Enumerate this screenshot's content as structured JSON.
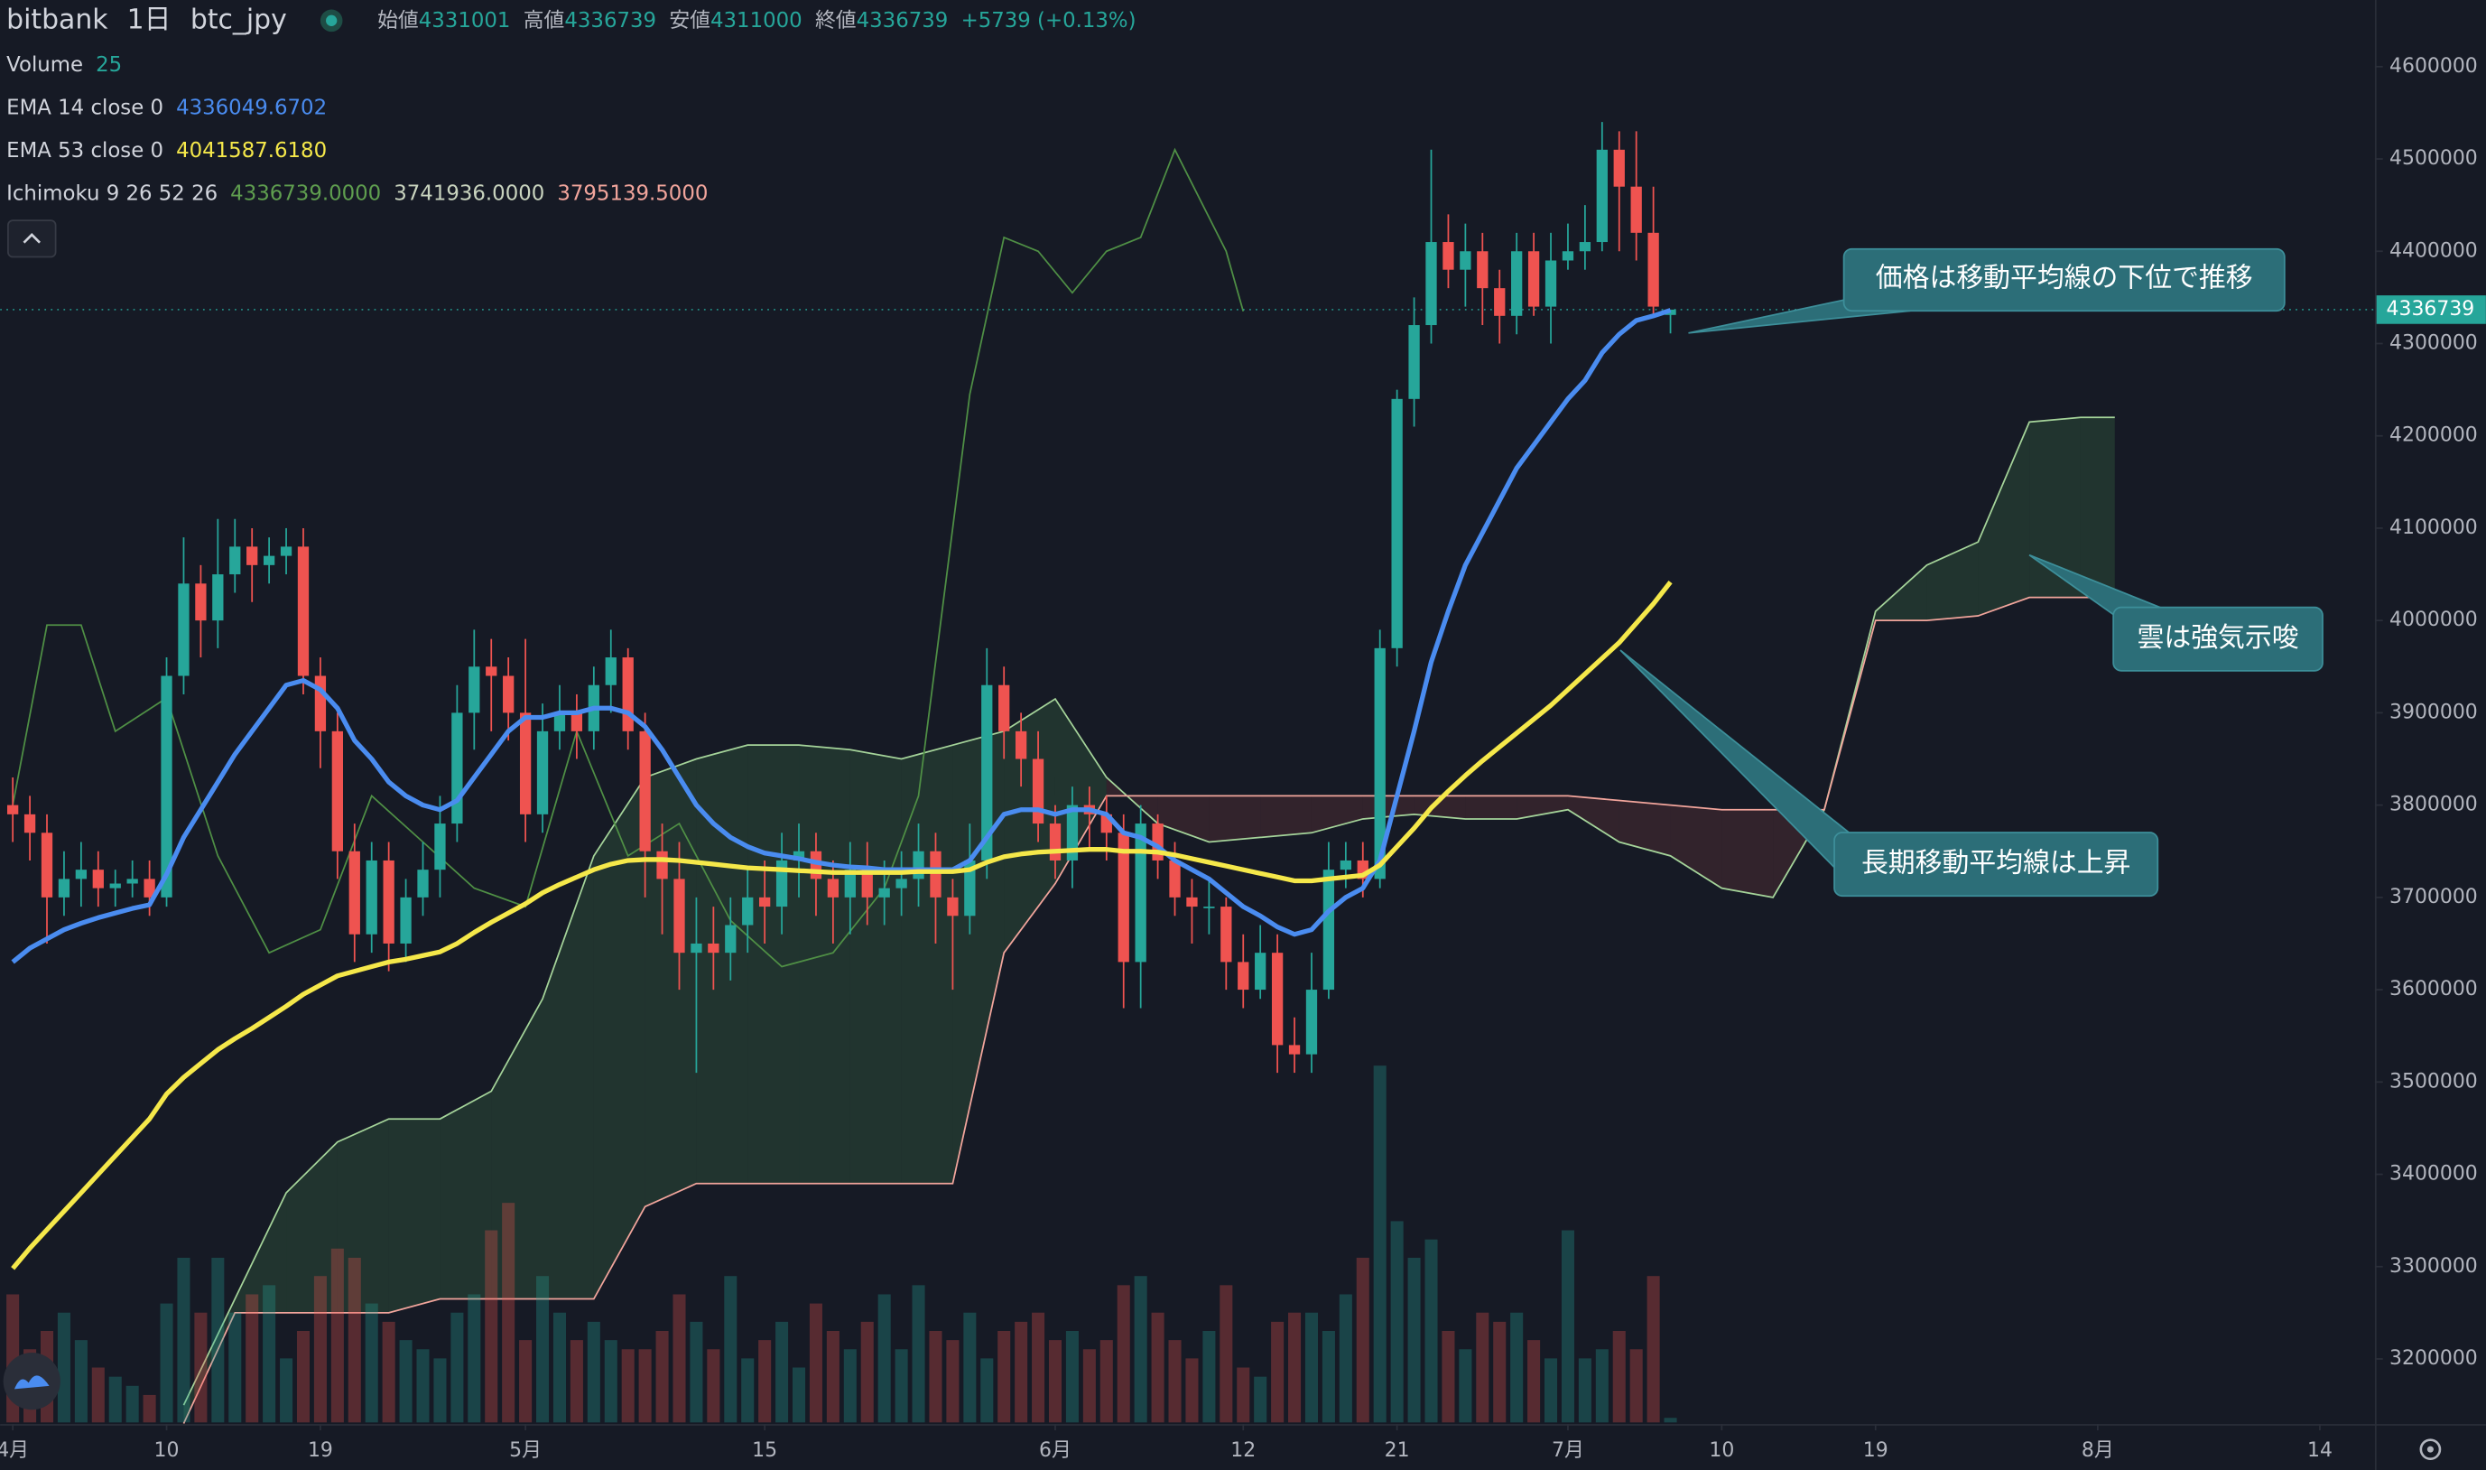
{
  "chart_data": {
    "type": "candlestick",
    "exchange": "bitbank",
    "interval": "1日",
    "symbol": "btc_jpy",
    "ohlc_labels": [
      "始値",
      "高値",
      "安値",
      "終値"
    ],
    "change": "+5739 (+0.13%)",
    "up_color": "#26a69a",
    "down_color": "#ef5350",
    "xlim": [
      -0.74,
      138.22
    ],
    "ylim": [
      3131200,
      4672200
    ],
    "xticks": [
      {
        "value": 0,
        "label": "4月"
      },
      {
        "value": 9,
        "label": "10"
      },
      {
        "value": 18,
        "label": "19"
      },
      {
        "value": 30,
        "label": "5月"
      },
      {
        "value": 44,
        "label": "15"
      },
      {
        "value": 61,
        "label": "6月"
      },
      {
        "value": 72,
        "label": "12"
      },
      {
        "value": 81,
        "label": "21"
      },
      {
        "value": 91,
        "label": "7月"
      },
      {
        "value": 100,
        "label": "10"
      },
      {
        "value": 109,
        "label": "19"
      },
      {
        "value": 122,
        "label": "8月"
      },
      {
        "value": 135,
        "label": "14"
      }
    ],
    "yticks": [
      3200000,
      3300000,
      3400000,
      3500000,
      3600000,
      3700000,
      3800000,
      3900000,
      4000000,
      4100000,
      4200000,
      4300000,
      4400000,
      4500000,
      4600000
    ],
    "x": [
      0,
      1,
      2,
      3,
      4,
      5,
      6,
      7,
      8,
      9,
      10,
      11,
      12,
      13,
      14,
      15,
      16,
      17,
      18,
      19,
      20,
      21,
      22,
      23,
      24,
      25,
      26,
      27,
      28,
      29,
      30,
      31,
      32,
      33,
      34,
      35,
      36,
      37,
      38,
      39,
      40,
      41,
      42,
      43,
      44,
      45,
      46,
      47,
      48,
      49,
      50,
      51,
      52,
      53,
      54,
      55,
      56,
      57,
      58,
      59,
      60,
      61,
      62,
      63,
      64,
      65,
      66,
      67,
      68,
      69,
      70,
      71,
      72,
      73,
      74,
      75,
      76,
      77,
      78,
      79,
      80,
      81,
      82,
      83,
      84,
      85,
      86,
      87,
      88,
      89,
      90,
      91,
      92,
      93,
      94,
      95,
      96,
      97
    ],
    "open": [
      3800000,
      3790000,
      3770000,
      3700000,
      3720000,
      3730000,
      3710000,
      3715000,
      3720000,
      3700000,
      3940000,
      4040000,
      4000000,
      4050000,
      4080000,
      4060000,
      4070000,
      4080000,
      3940000,
      3880000,
      3750000,
      3660000,
      3740000,
      3650000,
      3700000,
      3730000,
      3780000,
      3900000,
      3950000,
      3940000,
      3900000,
      3790000,
      3880000,
      3900000,
      3880000,
      3930000,
      3960000,
      3880000,
      3750000,
      3720000,
      3640000,
      3650000,
      3640000,
      3670000,
      3700000,
      3690000,
      3740000,
      3750000,
      3720000,
      3700000,
      3730000,
      3700000,
      3710000,
      3720000,
      3750000,
      3700000,
      3680000,
      3740000,
      3930000,
      3880000,
      3850000,
      3780000,
      3740000,
      3800000,
      3790000,
      3770000,
      3630000,
      3780000,
      3740000,
      3700000,
      3690000,
      3690000,
      3630000,
      3600000,
      3640000,
      3540000,
      3530000,
      3600000,
      3730000,
      3740000,
      3720000,
      3970000,
      4240000,
      4320000,
      4410000,
      4380000,
      4400000,
      4360000,
      4330000,
      4400000,
      4340000,
      4390000,
      4400000,
      4410000,
      4510000,
      4470000,
      4420000,
      4331001
    ],
    "high": [
      3830000,
      3810000,
      3790000,
      3750000,
      3760000,
      3750000,
      3730000,
      3740000,
      3740000,
      3960000,
      4090000,
      4060000,
      4110000,
      4110000,
      4100000,
      4090000,
      4100000,
      4100000,
      3960000,
      3900000,
      3780000,
      3760000,
      3760000,
      3720000,
      3760000,
      3810000,
      3930000,
      3990000,
      3980000,
      3960000,
      3980000,
      3910000,
      3930000,
      3920000,
      3950000,
      3990000,
      3970000,
      3900000,
      3780000,
      3760000,
      3700000,
      3690000,
      3700000,
      3730000,
      3740000,
      3770000,
      3780000,
      3770000,
      3740000,
      3760000,
      3760000,
      3740000,
      3750000,
      3780000,
      3770000,
      3720000,
      3780000,
      3970000,
      3950000,
      3900000,
      3880000,
      3800000,
      3820000,
      3820000,
      3810000,
      3790000,
      3800000,
      3790000,
      3760000,
      3720000,
      3720000,
      3700000,
      3660000,
      3670000,
      3660000,
      3570000,
      3640000,
      3760000,
      3760000,
      3760000,
      3990000,
      4250000,
      4350000,
      4510000,
      4440000,
      4430000,
      4420000,
      4380000,
      4420000,
      4420000,
      4420000,
      4430000,
      4450000,
      4540000,
      4530000,
      4530000,
      4470000,
      4336739
    ],
    "low": [
      3760000,
      3740000,
      3650000,
      3680000,
      3690000,
      3690000,
      3690000,
      3700000,
      3680000,
      3690000,
      3920000,
      3960000,
      3970000,
      4030000,
      4020000,
      4040000,
      4050000,
      3920000,
      3840000,
      3720000,
      3630000,
      3640000,
      3620000,
      3630000,
      3680000,
      3700000,
      3760000,
      3860000,
      3880000,
      3870000,
      3760000,
      3770000,
      3860000,
      3850000,
      3860000,
      3900000,
      3860000,
      3700000,
      3660000,
      3600000,
      3510000,
      3600000,
      3610000,
      3640000,
      3650000,
      3660000,
      3700000,
      3680000,
      3650000,
      3660000,
      3670000,
      3670000,
      3680000,
      3690000,
      3650000,
      3600000,
      3660000,
      3720000,
      3850000,
      3820000,
      3760000,
      3720000,
      3710000,
      3750000,
      3740000,
      3580000,
      3580000,
      3720000,
      3680000,
      3650000,
      3660000,
      3600000,
      3580000,
      3590000,
      3510000,
      3510000,
      3510000,
      3590000,
      3710000,
      3700000,
      3710000,
      3950000,
      4210000,
      4300000,
      4360000,
      4340000,
      4320000,
      4300000,
      4310000,
      4330000,
      4300000,
      4380000,
      4380000,
      4400000,
      4400000,
      4390000,
      4330000,
      4311000
    ],
    "close": [
      3790000,
      3770000,
      3700000,
      3720000,
      3730000,
      3710000,
      3715000,
      3720000,
      3700000,
      3940000,
      4040000,
      4000000,
      4050000,
      4080000,
      4060000,
      4070000,
      4080000,
      3940000,
      3880000,
      3750000,
      3660000,
      3740000,
      3650000,
      3700000,
      3730000,
      3780000,
      3900000,
      3950000,
      3940000,
      3900000,
      3790000,
      3880000,
      3900000,
      3880000,
      3930000,
      3960000,
      3880000,
      3750000,
      3720000,
      3640000,
      3650000,
      3640000,
      3670000,
      3700000,
      3690000,
      3740000,
      3750000,
      3720000,
      3700000,
      3730000,
      3700000,
      3710000,
      3720000,
      3750000,
      3700000,
      3680000,
      3740000,
      3930000,
      3880000,
      3850000,
      3780000,
      3740000,
      3800000,
      3790000,
      3770000,
      3630000,
      3780000,
      3740000,
      3700000,
      3690000,
      3690000,
      3630000,
      3600000,
      3640000,
      3540000,
      3530000,
      3600000,
      3730000,
      3740000,
      3720000,
      3970000,
      4240000,
      4320000,
      4410000,
      4380000,
      4400000,
      4360000,
      4330000,
      4400000,
      4340000,
      4390000,
      4400000,
      4410000,
      4510000,
      4470000,
      4420000,
      4340000,
      4336739
    ],
    "volume": {
      "name": "Volume",
      "values": [
        700,
        400,
        500,
        600,
        450,
        300,
        250,
        200,
        150,
        650,
        900,
        600,
        900,
        600,
        700,
        750,
        350,
        500,
        800,
        950,
        900,
        650,
        550,
        450,
        400,
        350,
        600,
        700,
        1050,
        1200,
        450,
        800,
        600,
        450,
        550,
        450,
        400,
        400,
        500,
        700,
        550,
        400,
        800,
        350,
        450,
        550,
        300,
        650,
        500,
        400,
        550,
        700,
        400,
        750,
        500,
        450,
        600,
        350,
        500,
        550,
        600,
        450,
        500,
        400,
        450,
        750,
        800,
        600,
        450,
        350,
        500,
        750,
        300,
        250,
        550,
        600,
        600,
        500,
        700,
        900,
        1950,
        1100,
        900,
        1000,
        500,
        400,
        600,
        550,
        600,
        450,
        350,
        1050,
        350,
        400,
        500,
        400,
        800,
        25
      ]
    },
    "ema": [
      {
        "name": "EMA 14 close 0",
        "color": "#4a8cf0",
        "values": [
          3630000,
          3645000,
          3655000,
          3665000,
          3672000,
          3678000,
          3683000,
          3688000,
          3692000,
          3725000,
          3765000,
          3795000,
          3825000,
          3855000,
          3880000,
          3905000,
          3930000,
          3935000,
          3925000,
          3905000,
          3870000,
          3850000,
          3825000,
          3810000,
          3800000,
          3795000,
          3805000,
          3830000,
          3855000,
          3880000,
          3895000,
          3895000,
          3900000,
          3900000,
          3905000,
          3905000,
          3900000,
          3885000,
          3860000,
          3830000,
          3800000,
          3780000,
          3765000,
          3755000,
          3748000,
          3745000,
          3742000,
          3738000,
          3735000,
          3733000,
          3732000,
          3730000,
          3730000,
          3730000,
          3730000,
          3730000,
          3740000,
          3765000,
          3790000,
          3795000,
          3795000,
          3790000,
          3795000,
          3795000,
          3790000,
          3770000,
          3765000,
          3755000,
          3740000,
          3730000,
          3720000,
          3705000,
          3690000,
          3680000,
          3668000,
          3660000,
          3665000,
          3685000,
          3700000,
          3710000,
          3740000,
          3810000,
          3880000,
          3955000,
          4010000,
          4060000,
          4095000,
          4130000,
          4165000,
          4190000,
          4215000,
          4240000,
          4260000,
          4290000,
          4310000,
          4325000,
          4330000,
          4336049.6702
        ]
      },
      {
        "name": "EMA 53 close 0",
        "color": "#f5e84a",
        "value_label": "4041587.6180",
        "values": [
          3298000,
          3320000,
          3340000,
          3360000,
          3380000,
          3400000,
          3420000,
          3440000,
          3460000,
          3487000,
          3505000,
          3520000,
          3535000,
          3547000,
          3558000,
          3570000,
          3582000,
          3595000,
          3605000,
          3615000,
          3620000,
          3625000,
          3630000,
          3633000,
          3637000,
          3641000,
          3650000,
          3662000,
          3673000,
          3683000,
          3693000,
          3705000,
          3714000,
          3722000,
          3730000,
          3736000,
          3740000,
          3741000,
          3741000,
          3740000,
          3738000,
          3736000,
          3734000,
          3732000,
          3731000,
          3730000,
          3729000,
          3728000,
          3727000,
          3727000,
          3727000,
          3727000,
          3727000,
          3728000,
          3728000,
          3728000,
          3730000,
          3738000,
          3744000,
          3747000,
          3749000,
          3750000,
          3751000,
          3752000,
          3752000,
          3750000,
          3750000,
          3749000,
          3746000,
          3742000,
          3738000,
          3734000,
          3730000,
          3726000,
          3722000,
          3718000,
          3718000,
          3720000,
          3722000,
          3724000,
          3735000,
          3755000,
          3775000,
          3797000,
          3815000,
          3832000,
          3848000,
          3863000,
          3878000,
          3893000,
          3908000,
          3925000,
          3942000,
          3959000,
          3976000,
          3997000,
          4018000,
          4041587.618
        ]
      }
    ],
    "ichimoku": {
      "name": "Ichimoku 9 26 52 26",
      "value_labels": [
        "4336739.0000",
        "3741936.0000",
        "3795139.5000"
      ],
      "label_colors": [
        "#5f9e4f",
        "#c9d4bf",
        "#f2a59c"
      ],
      "lagging": {
        "color": "#4f8f45",
        "x": [
          0,
          2,
          4,
          6,
          9,
          12,
          15,
          18,
          21,
          24,
          27,
          30,
          33,
          36,
          39,
          42,
          45,
          48,
          51,
          53,
          56,
          58,
          60,
          62,
          64,
          66,
          68,
          71,
          72
        ],
        "values": [
          3800000,
          3995000,
          3995000,
          3880000,
          3916000,
          3745000,
          3640000,
          3665000,
          3810000,
          3760000,
          3710000,
          3690000,
          3880000,
          3745000,
          3780000,
          3675000,
          3625000,
          3640000,
          3710000,
          3810000,
          4245000,
          4415000,
          4400000,
          4355000,
          4400000,
          4415000,
          4510000,
          4400000,
          4335000
        ]
      },
      "cloud_x": [
        10,
        13,
        16,
        19,
        22,
        25,
        28,
        31,
        34,
        37,
        40,
        43,
        46,
        49,
        52,
        55,
        58,
        61,
        64,
        67,
        70,
        73,
        76,
        79,
        82,
        85,
        88,
        91,
        94,
        97,
        100,
        103,
        106,
        109,
        112,
        115,
        118,
        121,
        123
      ],
      "span_a": {
        "color": "#a5d49a",
        "values": [
          3150000,
          3265000,
          3380000,
          3435000,
          3460000,
          3460000,
          3490000,
          3590000,
          3745000,
          3830000,
          3850000,
          3865000,
          3865000,
          3860000,
          3850000,
          3865000,
          3880000,
          3915000,
          3830000,
          3780000,
          3760000,
          3765000,
          3770000,
          3785000,
          3790000,
          3785000,
          3785000,
          3795000,
          3760000,
          3745000,
          3710000,
          3700000,
          3795000,
          4010000,
          4060000,
          4085000,
          4215000,
          4220000,
          4220000
        ]
      },
      "span_b": {
        "color": "#f2a59c",
        "values": [
          3130000,
          3250000,
          3250000,
          3250000,
          3250000,
          3265000,
          3265000,
          3265000,
          3265000,
          3365000,
          3390000,
          3390000,
          3390000,
          3390000,
          3390000,
          3390000,
          3640000,
          3715000,
          3810000,
          3810000,
          3810000,
          3810000,
          3810000,
          3810000,
          3810000,
          3810000,
          3810000,
          3810000,
          3805000,
          3800000,
          3795000,
          3795000,
          3795000,
          4000000,
          4000000,
          4005000,
          4025000,
          4025000,
          4025000
        ]
      },
      "bull_fill": "#2c4a38",
      "bear_fill": "#4a2c33"
    },
    "annotations": [
      "価格は移動平均線の下位で推移",
      "雲は強気示唆",
      "長期移動平均線は上昇"
    ]
  }
}
